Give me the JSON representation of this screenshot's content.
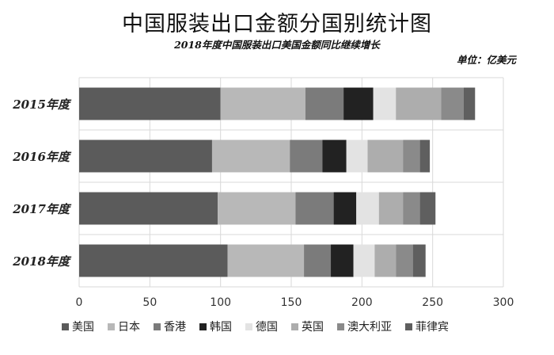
{
  "chart_data": {
    "type": "bar",
    "orientation": "horizontal",
    "stacked": true,
    "title": "中国服装出口金额分国别统计图",
    "subtitle": "2018年度中国服装出口美国金额同比继续增长",
    "unit_label": "单位：亿美元",
    "categories": [
      "2015年度",
      "2016年度",
      "2017年度",
      "2018年度"
    ],
    "series": [
      {
        "name": "美国",
        "color": "#5b5b5b",
        "values": [
          100,
          94,
          98,
          105
        ]
      },
      {
        "name": "日本",
        "color": "#b8b8b8",
        "values": [
          60,
          55,
          55,
          54
        ]
      },
      {
        "name": "香港",
        "color": "#7b7b7b",
        "values": [
          27,
          23,
          27,
          19
        ]
      },
      {
        "name": "韩国",
        "color": "#222222",
        "values": [
          21,
          17,
          16,
          16
        ]
      },
      {
        "name": "德国",
        "color": "#e3e3e3",
        "values": [
          16,
          15,
          16,
          15
        ]
      },
      {
        "name": "英国",
        "color": "#adadad",
        "values": [
          32,
          25,
          17,
          15
        ]
      },
      {
        "name": "澳大利亚",
        "color": "#8a8a8a",
        "values": [
          16,
          12,
          12,
          12
        ]
      },
      {
        "name": "菲律宾",
        "color": "#5f5f5f",
        "values": [
          8,
          7,
          11,
          9
        ]
      }
    ],
    "xlim": [
      0,
      300
    ],
    "xticks": [
      "0",
      "50",
      "100",
      "150",
      "200",
      "250",
      "300"
    ],
    "grid": true,
    "legend_position": "bottom"
  }
}
